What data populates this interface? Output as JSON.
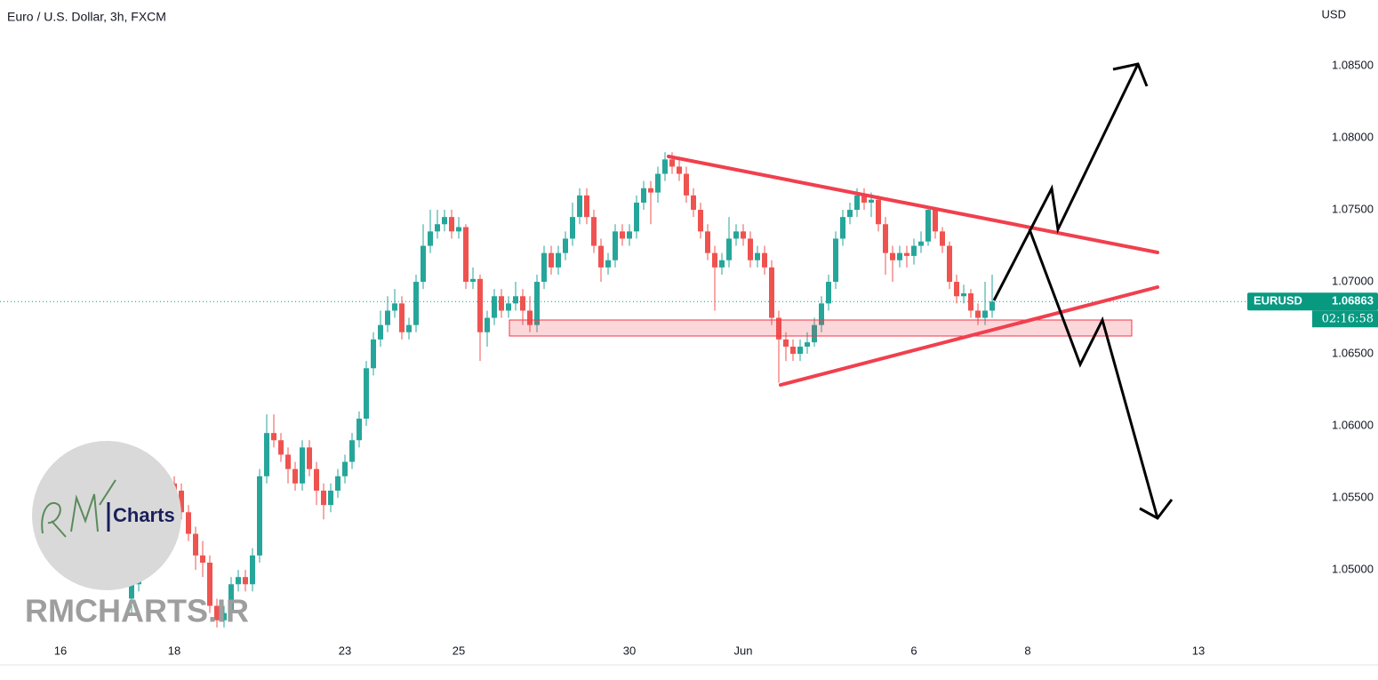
{
  "chart_data": {
    "type": "candlestick",
    "title": "Euro / U.S. Dollar, 3h, FXCM",
    "currency_label": "USD",
    "symbol": "EURUSD",
    "countdown": "02:16:58",
    "watermark": "RMCHARTS.IR",
    "logo_text": "Charts",
    "up_color": "#26a69a",
    "down_color": "#ef5350",
    "grid": false,
    "ylim": [
      1.0434,
      1.08957
    ],
    "yticks": [
      {
        "value": 1.05,
        "label": "1.05000"
      },
      {
        "value": 1.055,
        "label": "1.05500"
      },
      {
        "value": 1.06,
        "label": "1.06000"
      },
      {
        "value": 1.065,
        "label": "1.06500"
      },
      {
        "value": 1.07,
        "label": "1.07000"
      },
      {
        "value": 1.075,
        "label": "1.07500"
      },
      {
        "value": 1.08,
        "label": "1.08000"
      },
      {
        "value": 1.085,
        "label": "1.08500"
      }
    ],
    "categories": [
      "16",
      null,
      null,
      null,
      null,
      null,
      null,
      null,
      null,
      null,
      null,
      null,
      null,
      null,
      null,
      null,
      "18",
      null,
      null,
      null,
      null,
      null,
      null,
      null,
      null,
      null,
      null,
      null,
      null,
      null,
      null,
      null,
      null,
      null,
      null,
      null,
      null,
      null,
      null,
      null,
      "23",
      null,
      null,
      null,
      null,
      null,
      null,
      null,
      null,
      null,
      null,
      null,
      null,
      null,
      null,
      null,
      "25",
      null,
      null,
      null,
      null,
      null,
      null,
      null,
      null,
      null,
      null,
      null,
      null,
      null,
      null,
      null,
      null,
      null,
      null,
      null,
      null,
      null,
      null,
      null,
      "30",
      null,
      null,
      null,
      null,
      null,
      null,
      null,
      null,
      null,
      null,
      null,
      null,
      null,
      null,
      null,
      "Jun",
      null,
      null,
      null,
      null,
      null,
      null,
      null,
      null,
      null,
      null,
      null,
      null,
      null,
      null,
      null,
      null,
      null,
      null,
      null,
      null,
      null,
      null,
      null,
      "6",
      null,
      null,
      null,
      null,
      null,
      null,
      null,
      null,
      null,
      null,
      null,
      null,
      null,
      null,
      null,
      "8",
      null,
      null,
      null,
      null,
      null,
      null,
      null,
      null,
      null,
      null,
      null,
      null,
      null,
      null,
      null,
      null,
      null,
      null,
      null,
      null,
      null,
      null,
      null,
      "13"
    ],
    "open": [
      null,
      null,
      null,
      null,
      null,
      null,
      null,
      null,
      null,
      null,
      1.048,
      1.049,
      1.0505,
      1.052,
      1.0535,
      1.0545,
      1.056,
      1.0555,
      1.054,
      1.0525,
      1.051,
      1.0505,
      1.0475,
      1.0465,
      1.047,
      1.049,
      1.0495,
      1.049,
      1.051,
      1.0565,
      1.0595,
      1.059,
      1.058,
      1.057,
      1.056,
      1.0585,
      1.057,
      1.0555,
      1.0545,
      1.0555,
      1.0565,
      1.0575,
      1.059,
      1.0605,
      1.064,
      1.066,
      1.067,
      1.068,
      1.0685,
      1.0665,
      1.067,
      1.07,
      1.0725,
      1.0735,
      1.074,
      1.0745,
      1.0735,
      1.0738,
      1.07,
      1.0702,
      1.0665,
      1.0675,
      1.069,
      1.068,
      1.0685,
      1.069,
      1.068,
      1.067,
      1.07,
      1.072,
      1.071,
      1.072,
      1.073,
      1.0745,
      1.076,
      1.0745,
      1.0725,
      1.071,
      1.0715,
      1.0735,
      1.073,
      1.0735,
      1.0755,
      1.0765,
      1.0762,
      1.0775,
      1.0785,
      1.078,
      1.0775,
      1.076,
      1.075,
      1.0735,
      1.072,
      1.071,
      1.0715,
      1.073,
      1.0735,
      1.073,
      1.0715,
      1.072,
      1.071,
      1.0675,
      1.066,
      1.0655,
      1.065,
      1.0655,
      1.0658,
      1.067,
      1.0685,
      1.07,
      1.073,
      1.0745,
      1.075,
      1.076,
      1.0755,
      1.0757,
      1.074,
      1.072,
      1.0715,
      1.072,
      1.0718,
      1.0725,
      1.0728,
      1.075,
      1.0735,
      1.0725,
      1.07,
      1.069,
      1.0692,
      1.068,
      1.0675,
      1.068,
      null,
      null,
      null,
      null,
      null,
      null,
      null,
      null,
      null,
      null,
      null,
      null,
      null,
      null,
      null,
      null,
      null,
      null,
      null,
      null,
      null,
      null,
      null,
      null,
      null,
      null,
      null,
      null,
      null
    ],
    "high": [
      null,
      null,
      null,
      null,
      null,
      null,
      null,
      null,
      null,
      null,
      1.0515,
      1.051,
      1.0525,
      1.054,
      1.055,
      1.0565,
      1.0565,
      1.056,
      1.0545,
      1.053,
      1.052,
      1.051,
      1.048,
      1.0475,
      1.0495,
      1.05,
      1.05,
      1.0515,
      1.057,
      1.0608,
      1.0608,
      1.0595,
      1.0585,
      1.0575,
      1.059,
      1.059,
      1.0575,
      1.056,
      1.056,
      1.057,
      1.058,
      1.0595,
      1.061,
      1.0645,
      1.0665,
      1.068,
      1.069,
      1.0695,
      1.069,
      1.0675,
      1.0705,
      1.074,
      1.075,
      1.075,
      1.075,
      1.075,
      1.0745,
      1.074,
      1.071,
      1.0705,
      1.068,
      1.0695,
      1.0695,
      1.069,
      1.07,
      1.0695,
      1.069,
      1.0705,
      1.0725,
      1.0725,
      1.0725,
      1.0735,
      1.0755,
      1.0765,
      1.0765,
      1.075,
      1.073,
      1.072,
      1.074,
      1.074,
      1.074,
      1.076,
      1.077,
      1.077,
      1.078,
      1.079,
      1.079,
      1.0785,
      1.078,
      1.0765,
      1.0755,
      1.074,
      1.0725,
      1.072,
      1.0745,
      1.074,
      1.074,
      1.0735,
      1.0725,
      1.0725,
      1.0715,
      1.068,
      1.0665,
      1.066,
      1.066,
      1.0665,
      1.0675,
      1.069,
      1.0705,
      1.0735,
      1.075,
      1.0755,
      1.0765,
      1.0765,
      1.0762,
      1.076,
      1.0745,
      1.0725,
      1.0725,
      1.0725,
      1.073,
      1.0735,
      1.0752,
      1.0752,
      1.0738,
      1.0728,
      1.0705,
      1.0698,
      1.0695,
      1.0685,
      1.07,
      1.0705,
      null,
      null,
      null,
      null,
      null,
      null,
      null,
      null,
      null,
      null,
      null,
      null,
      null,
      null,
      null,
      null,
      null,
      null,
      null,
      null,
      null,
      null,
      null,
      null,
      null,
      null,
      null,
      null,
      null
    ],
    "low": [
      null,
      null,
      null,
      null,
      null,
      null,
      null,
      null,
      null,
      null,
      1.047,
      1.0485,
      1.05,
      1.0515,
      1.053,
      1.054,
      1.055,
      1.0535,
      1.052,
      1.05,
      1.0495,
      1.047,
      1.046,
      1.046,
      1.0465,
      1.0485,
      1.0485,
      1.0485,
      1.0505,
      1.056,
      1.0585,
      1.0575,
      1.056,
      1.0555,
      1.0555,
      1.0565,
      1.0545,
      1.0535,
      1.054,
      1.055,
      1.056,
      1.057,
      1.0585,
      1.06,
      1.0635,
      1.0655,
      1.0665,
      1.0675,
      1.066,
      1.066,
      1.0665,
      1.0695,
      1.072,
      1.073,
      1.0735,
      1.073,
      1.073,
      1.0695,
      1.0695,
      1.0645,
      1.0655,
      1.067,
      1.0675,
      1.0675,
      1.068,
      1.067,
      1.0665,
      1.0665,
      1.0695,
      1.0705,
      1.0705,
      1.0715,
      1.0725,
      1.074,
      1.074,
      1.072,
      1.07,
      1.0705,
      1.071,
      1.0725,
      1.0725,
      1.073,
      1.075,
      1.074,
      1.0755,
      1.077,
      1.0775,
      1.077,
      1.0755,
      1.0745,
      1.073,
      1.0715,
      1.068,
      1.0705,
      1.071,
      1.0725,
      1.0725,
      1.071,
      1.071,
      1.0705,
      1.067,
      1.063,
      1.0645,
      1.0645,
      1.0645,
      1.065,
      1.0655,
      1.0665,
      1.068,
      1.0695,
      1.0725,
      1.074,
      1.0745,
      1.075,
      1.0745,
      1.0735,
      1.0705,
      1.07,
      1.071,
      1.071,
      1.0712,
      1.072,
      1.0725,
      1.073,
      1.072,
      1.0695,
      1.0685,
      1.0685,
      1.0675,
      1.067,
      1.067,
      1.0675,
      null,
      null,
      null,
      null,
      null,
      null,
      null,
      null,
      null,
      null,
      null,
      null,
      null,
      null,
      null,
      null,
      null,
      null,
      null,
      null,
      null,
      null,
      null,
      null,
      null,
      null,
      null,
      null,
      null
    ],
    "close": [
      null,
      null,
      null,
      null,
      null,
      null,
      null,
      null,
      null,
      null,
      1.049,
      1.0505,
      1.052,
      1.0535,
      1.0545,
      1.056,
      1.0555,
      1.054,
      1.0525,
      1.051,
      1.0505,
      1.0475,
      1.0465,
      1.047,
      1.049,
      1.0495,
      1.049,
      1.051,
      1.0565,
      1.0595,
      1.059,
      1.058,
      1.057,
      1.056,
      1.0585,
      1.057,
      1.0555,
      1.0545,
      1.0555,
      1.0565,
      1.0575,
      1.059,
      1.0605,
      1.064,
      1.066,
      1.067,
      1.068,
      1.0685,
      1.0665,
      1.067,
      1.07,
      1.0725,
      1.0735,
      1.074,
      1.0745,
      1.0735,
      1.0738,
      1.07,
      1.0702,
      1.0665,
      1.0675,
      1.069,
      1.068,
      1.0685,
      1.069,
      1.068,
      1.067,
      1.07,
      1.072,
      1.071,
      1.072,
      1.073,
      1.0745,
      1.076,
      1.0745,
      1.0725,
      1.071,
      1.0715,
      1.0735,
      1.073,
      1.0735,
      1.0755,
      1.0765,
      1.0762,
      1.0775,
      1.0785,
      1.078,
      1.0775,
      1.076,
      1.075,
      1.0735,
      1.072,
      1.071,
      1.0715,
      1.073,
      1.0735,
      1.073,
      1.0715,
      1.072,
      1.071,
      1.0675,
      1.066,
      1.0655,
      1.065,
      1.0655,
      1.0658,
      1.067,
      1.0685,
      1.07,
      1.073,
      1.0745,
      1.075,
      1.076,
      1.0755,
      1.0757,
      1.074,
      1.072,
      1.0715,
      1.072,
      1.0718,
      1.0725,
      1.0728,
      1.075,
      1.0735,
      1.0725,
      1.07,
      1.069,
      1.0692,
      1.068,
      1.0675,
      1.068,
      1.06863,
      null,
      null,
      null,
      null,
      null,
      null,
      null,
      null,
      null,
      null,
      null,
      null,
      null,
      null,
      null,
      null,
      null,
      null,
      null,
      null,
      null,
      null,
      null,
      null,
      null,
      null,
      null,
      null,
      null
    ]
  }
}
